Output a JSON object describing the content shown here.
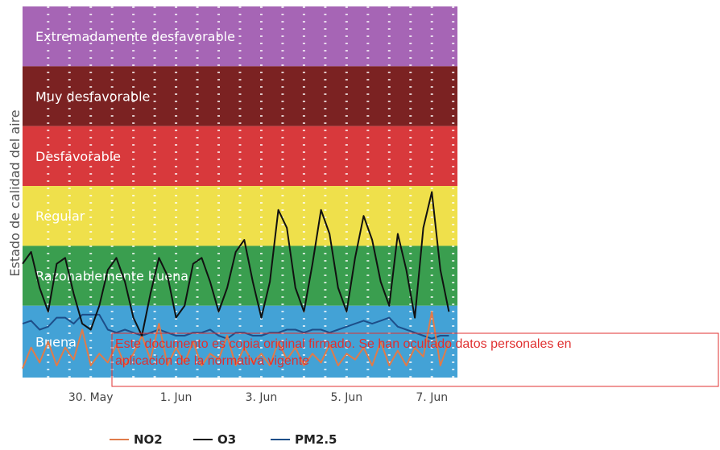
{
  "chart_data": {
    "type": "line",
    "ylabel": "Estado de calidad del aire",
    "bands": [
      {
        "name": "Extremadamente desfavorable",
        "from": 6,
        "to": 7,
        "color": "#a665b5"
      },
      {
        "name": "Muy desfavorable",
        "from": 5,
        "to": 6,
        "color": "#7b2222"
      },
      {
        "name": "Desfavorable",
        "from": 4,
        "to": 5,
        "color": "#d8393c"
      },
      {
        "name": "Regular",
        "from": 3,
        "to": 4,
        "color": "#efe04b"
      },
      {
        "name": "Razonablemente buena",
        "from": 2,
        "to": 3,
        "color": "#3a9e4f"
      },
      {
        "name": "Buena",
        "from": 1,
        "to": 2,
        "color": "#43a2d6"
      }
    ],
    "ylim": [
      0.8,
      7
    ],
    "xlim": [
      0,
      10.2
    ],
    "x_ticks": [
      {
        "label": "30. May",
        "x": 1.6
      },
      {
        "label": "1. Jun",
        "x": 3.6
      },
      {
        "label": "3. Jun",
        "x": 5.6
      },
      {
        "label": "5. Jun",
        "x": 7.6
      },
      {
        "label": "7. Jun",
        "x": 9.6
      }
    ],
    "grid": "dotted-vertical",
    "legend_position": "bottom",
    "series": [
      {
        "name": "NO2",
        "color": "#e07b4a",
        "x": [
          0,
          0.2,
          0.4,
          0.6,
          0.8,
          1.0,
          1.2,
          1.4,
          1.6,
          1.8,
          2.0,
          2.2,
          2.4,
          2.6,
          2.8,
          3.0,
          3.2,
          3.4,
          3.6,
          3.8,
          4.0,
          4.2,
          4.4,
          4.6,
          4.8,
          5.0,
          5.2,
          5.4,
          5.6,
          5.8,
          6.0,
          6.2,
          6.4,
          6.6,
          6.8,
          7.0,
          7.2,
          7.4,
          7.6,
          7.8,
          8.0,
          8.2,
          8.4,
          8.6,
          8.8,
          9.0,
          9.2,
          9.4,
          9.6,
          9.8,
          10.0
        ],
        "y": [
          0.95,
          1.3,
          1.05,
          1.4,
          1.0,
          1.3,
          1.1,
          1.6,
          1.0,
          1.2,
          1.05,
          1.35,
          1.0,
          1.2,
          1.5,
          1.1,
          1.7,
          1.0,
          1.3,
          1.05,
          1.4,
          1.0,
          1.2,
          1.1,
          1.5,
          1.0,
          1.3,
          1.05,
          1.2,
          1.0,
          1.4,
          1.1,
          1.3,
          1.0,
          1.2,
          1.05,
          1.35,
          1.0,
          1.2,
          1.1,
          1.3,
          1.0,
          1.4,
          1.0,
          1.25,
          1.0,
          1.3,
          1.15,
          1.9,
          1.0,
          1.4
        ]
      },
      {
        "name": "O3",
        "color": "#111111",
        "x": [
          0,
          0.2,
          0.4,
          0.6,
          0.8,
          1.0,
          1.2,
          1.4,
          1.6,
          1.8,
          2.0,
          2.2,
          2.4,
          2.6,
          2.8,
          3.0,
          3.2,
          3.4,
          3.6,
          3.8,
          4.0,
          4.2,
          4.4,
          4.6,
          4.8,
          5.0,
          5.2,
          5.4,
          5.6,
          5.8,
          6.0,
          6.2,
          6.4,
          6.6,
          6.8,
          7.0,
          7.2,
          7.4,
          7.6,
          7.8,
          8.0,
          8.2,
          8.4,
          8.6,
          8.8,
          9.0,
          9.2,
          9.4,
          9.6,
          9.8,
          10.0
        ],
        "y": [
          2.7,
          2.9,
          2.3,
          1.9,
          2.7,
          2.8,
          2.2,
          1.7,
          1.6,
          2.0,
          2.6,
          2.8,
          2.4,
          1.8,
          1.5,
          2.2,
          2.8,
          2.5,
          1.8,
          2.0,
          2.7,
          2.8,
          2.4,
          1.9,
          2.3,
          2.9,
          3.1,
          2.4,
          1.8,
          2.4,
          3.6,
          3.3,
          2.3,
          1.9,
          2.7,
          3.6,
          3.2,
          2.3,
          1.9,
          2.8,
          3.5,
          3.1,
          2.4,
          2.0,
          3.2,
          2.6,
          1.8,
          3.3,
          3.9,
          2.6,
          1.9
        ]
      },
      {
        "name": "PM2.5",
        "color": "#1d4e89",
        "x": [
          0,
          0.2,
          0.4,
          0.6,
          0.8,
          1.0,
          1.2,
          1.4,
          1.6,
          1.8,
          2.0,
          2.2,
          2.4,
          2.6,
          2.8,
          3.0,
          3.2,
          3.4,
          3.6,
          3.8,
          4.0,
          4.2,
          4.4,
          4.6,
          4.8,
          5.0,
          5.2,
          5.4,
          5.6,
          5.8,
          6.0,
          6.2,
          6.4,
          6.6,
          6.8,
          7.0,
          7.2,
          7.4,
          7.6,
          7.8,
          8.0,
          8.2,
          8.4,
          8.6,
          8.8,
          9.0,
          9.2,
          9.4,
          9.6,
          9.8,
          10.0
        ],
        "y": [
          1.7,
          1.75,
          1.6,
          1.65,
          1.8,
          1.8,
          1.7,
          1.85,
          1.85,
          1.85,
          1.6,
          1.55,
          1.6,
          1.55,
          1.5,
          1.55,
          1.6,
          1.55,
          1.5,
          1.5,
          1.55,
          1.55,
          1.6,
          1.5,
          1.45,
          1.55,
          1.55,
          1.5,
          1.5,
          1.55,
          1.55,
          1.6,
          1.6,
          1.55,
          1.6,
          1.6,
          1.55,
          1.6,
          1.65,
          1.7,
          1.75,
          1.7,
          1.75,
          1.8,
          1.65,
          1.6,
          1.55,
          1.5,
          1.45,
          1.5,
          1.5
        ]
      }
    ]
  },
  "stamp": {
    "line1": "Este documento es copia original firmado. Se han ocultado datos personales en",
    "line2": "aplicación de la normativa vigente"
  }
}
